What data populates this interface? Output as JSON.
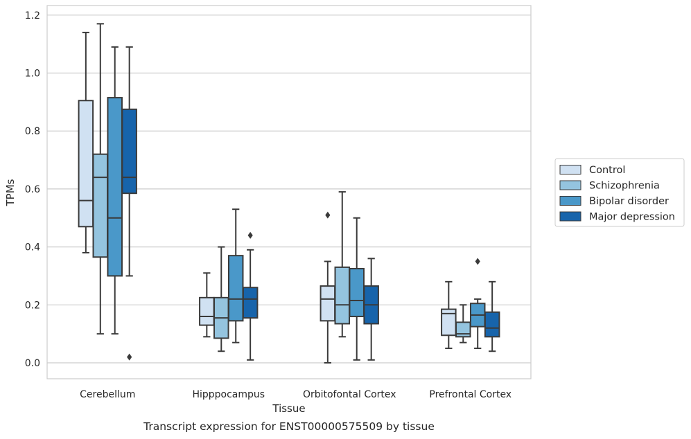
{
  "caption": "Transcript expression for ENST00000575509 by tissue",
  "chart_data": {
    "type": "boxplot",
    "xlabel": "Tissue",
    "ylabel": "TPMs",
    "ylim": [
      -0.055,
      1.23
    ],
    "yticks": [
      "0.0",
      "0.2",
      "0.4",
      "0.6",
      "0.8",
      "1.0",
      "1.2"
    ],
    "grid": true,
    "legend_position": "right",
    "categories": [
      "Cerebellum",
      "Hipppocampus",
      "Orbitofontal Cortex",
      "Prefrontal Cortex"
    ],
    "series": [
      {
        "name": "Control",
        "color": "#d0e1f2",
        "boxes": [
          {
            "whislo": 0.38,
            "q1": 0.47,
            "med": 0.56,
            "q3": 0.905,
            "whishi": 1.14,
            "fliers": []
          },
          {
            "whislo": 0.09,
            "q1": 0.13,
            "med": 0.16,
            "q3": 0.225,
            "whishi": 0.31,
            "fliers": []
          },
          {
            "whislo": 0.0,
            "q1": 0.145,
            "med": 0.22,
            "q3": 0.265,
            "whishi": 0.35,
            "fliers": [
              0.51
            ]
          },
          {
            "whislo": 0.05,
            "q1": 0.095,
            "med": 0.17,
            "q3": 0.185,
            "whishi": 0.28,
            "fliers": []
          }
        ]
      },
      {
        "name": "Schizophrenia",
        "color": "#94c4df",
        "boxes": [
          {
            "whislo": 0.1,
            "q1": 0.365,
            "med": 0.64,
            "q3": 0.72,
            "whishi": 1.17,
            "fliers": []
          },
          {
            "whislo": 0.04,
            "q1": 0.085,
            "med": 0.155,
            "q3": 0.225,
            "whishi": 0.4,
            "fliers": []
          },
          {
            "whislo": 0.09,
            "q1": 0.135,
            "med": 0.2,
            "q3": 0.33,
            "whishi": 0.59,
            "fliers": []
          },
          {
            "whislo": 0.07,
            "q1": 0.09,
            "med": 0.1,
            "q3": 0.14,
            "whishi": 0.2,
            "fliers": []
          }
        ]
      },
      {
        "name": "Bipolar disorder",
        "color": "#4a98c9",
        "boxes": [
          {
            "whislo": 0.1,
            "q1": 0.3,
            "med": 0.5,
            "q3": 0.915,
            "whishi": 1.09,
            "fliers": []
          },
          {
            "whislo": 0.07,
            "q1": 0.145,
            "med": 0.22,
            "q3": 0.37,
            "whishi": 0.53,
            "fliers": []
          },
          {
            "whislo": 0.01,
            "q1": 0.16,
            "med": 0.215,
            "q3": 0.325,
            "whishi": 0.5,
            "fliers": []
          },
          {
            "whislo": 0.05,
            "q1": 0.125,
            "med": 0.165,
            "q3": 0.205,
            "whishi": 0.22,
            "fliers": [
              0.35
            ]
          }
        ]
      },
      {
        "name": "Major depression",
        "color": "#1764ab",
        "boxes": [
          {
            "whislo": 0.3,
            "q1": 0.585,
            "med": 0.64,
            "q3": 0.875,
            "whishi": 1.09,
            "fliers": [
              0.02
            ]
          },
          {
            "whislo": 0.01,
            "q1": 0.155,
            "med": 0.22,
            "q3": 0.26,
            "whishi": 0.39,
            "fliers": [
              0.44
            ]
          },
          {
            "whislo": 0.01,
            "q1": 0.135,
            "med": 0.2,
            "q3": 0.265,
            "whishi": 0.36,
            "fliers": []
          },
          {
            "whislo": 0.04,
            "q1": 0.09,
            "med": 0.12,
            "q3": 0.175,
            "whishi": 0.28,
            "fliers": []
          }
        ]
      }
    ]
  }
}
